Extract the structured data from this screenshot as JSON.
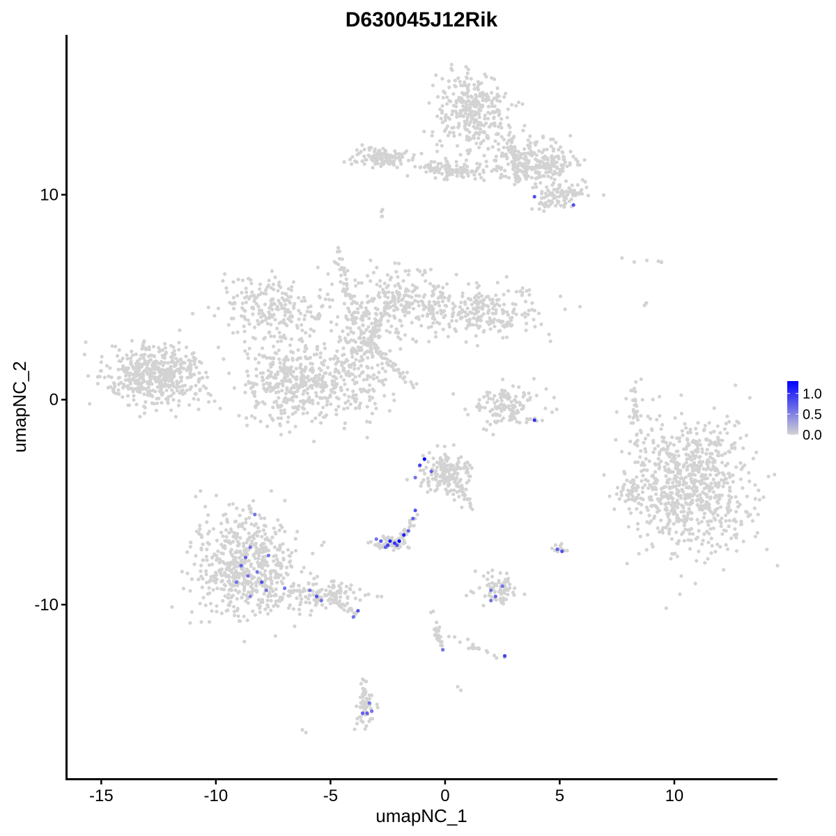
{
  "chart_data": {
    "type": "scatter",
    "title": "D630045J12Rik",
    "xlabel": "umapNC_1",
    "ylabel": "umapNC_2",
    "xlim": [
      -16.5,
      14.5
    ],
    "ylim": [
      -18.5,
      17.8
    ],
    "x_ticks": [
      -15,
      -10,
      -5,
      0,
      5,
      10
    ],
    "y_ticks": [
      -10,
      0,
      10
    ],
    "grid": false,
    "point_color_low": "#d3d3d3",
    "point_color_high": "#0000ff",
    "legend": {
      "position": "right",
      "min": 0.0,
      "max": 1.3,
      "ticks": [
        0.0,
        0.5,
        1.0
      ],
      "labels": [
        "0.0",
        "0.5",
        "1.0"
      ]
    },
    "clusters": [
      {
        "cx": 1.2,
        "cy": 14.0,
        "sx": 0.8,
        "sy": 1.0,
        "n": 320
      },
      {
        "cx": 3.8,
        "cy": 11.6,
        "sx": 0.9,
        "sy": 0.5,
        "n": 260
      },
      {
        "cx": 5.0,
        "cy": 10.0,
        "sx": 0.6,
        "sy": 0.35,
        "n": 90
      },
      {
        "cx": -2.8,
        "cy": 11.8,
        "sx": 0.6,
        "sy": 0.25,
        "n": 110
      },
      {
        "cx": 0.5,
        "cy": 11.2,
        "sx": 0.8,
        "sy": 0.25,
        "n": 70
      },
      {
        "cx": -12.6,
        "cy": 1.2,
        "sx": 1.1,
        "sy": 0.7,
        "n": 480
      },
      {
        "cx": -6.5,
        "cy": 0.8,
        "sx": 1.2,
        "sy": 0.9,
        "n": 420
      },
      {
        "cx": -3.6,
        "cy": 2.5,
        "sx": 0.8,
        "sy": 1.5,
        "n": 260
      },
      {
        "cx": -7.5,
        "cy": 4.5,
        "sx": 1.2,
        "sy": 0.8,
        "n": 220
      },
      {
        "cx": -1.5,
        "cy": 4.8,
        "sx": 1.0,
        "sy": 0.8,
        "n": 180
      },
      {
        "cx": 1.7,
        "cy": 4.3,
        "sx": 1.3,
        "sy": 0.6,
        "n": 230
      },
      {
        "cx": 2.8,
        "cy": -0.3,
        "sx": 0.8,
        "sy": 0.5,
        "n": 130
      },
      {
        "cx": 10.6,
        "cy": -4.2,
        "sx": 1.3,
        "sy": 1.6,
        "n": 780
      },
      {
        "cx": 8.1,
        "cy": -4.5,
        "sx": 0.2,
        "sy": 0.4,
        "n": 30
      },
      {
        "cx": -8.8,
        "cy": -8.2,
        "sx": 1.1,
        "sy": 1.3,
        "n": 560
      },
      {
        "cx": -5.5,
        "cy": -9.6,
        "sx": 1.0,
        "sy": 0.4,
        "n": 140
      },
      {
        "cx": 0.0,
        "cy": -3.6,
        "sx": 0.55,
        "sy": 0.55,
        "n": 170
      },
      {
        "cx": -2.4,
        "cy": -7.0,
        "sx": 0.35,
        "sy": 0.15,
        "n": 55
      },
      {
        "cx": 2.2,
        "cy": -9.2,
        "sx": 0.45,
        "sy": 0.4,
        "n": 70
      },
      {
        "cx": -3.5,
        "cy": -15.0,
        "sx": 0.2,
        "sy": 0.6,
        "n": 40
      },
      {
        "cx": 5.0,
        "cy": -7.3,
        "sx": 0.15,
        "sy": 0.12,
        "n": 12
      },
      {
        "cx": 8.3,
        "cy": -0.5,
        "sx": 0.15,
        "sy": 0.6,
        "n": 30
      }
    ],
    "segments": [
      {
        "x1": -1.2,
        "y1": 11.4,
        "x2": 0.8,
        "y2": 11.0,
        "n": 40
      },
      {
        "x1": 2.8,
        "y1": 13.2,
        "x2": 3.2,
        "y2": 10.6,
        "n": 40
      },
      {
        "x1": -4.0,
        "y1": 3.5,
        "x2": -4.7,
        "y2": 7.5,
        "n": 45
      },
      {
        "x1": -3.6,
        "y1": 3.0,
        "x2": -1.3,
        "y2": 0.6,
        "n": 40
      },
      {
        "x1": -3.2,
        "y1": 3.0,
        "x2": -2.2,
        "y2": 5.2,
        "n": 40
      },
      {
        "x1": -1.2,
        "y1": -5.6,
        "x2": -2.0,
        "y2": -6.9,
        "n": 20
      },
      {
        "x1": 0.4,
        "y1": -3.8,
        "x2": 1.2,
        "y2": -5.3,
        "n": 25
      },
      {
        "x1": -4.3,
        "y1": -10.2,
        "x2": -3.8,
        "y2": -10.6,
        "n": 10
      },
      {
        "x1": -0.6,
        "y1": -10.2,
        "x2": -0.2,
        "y2": -12.0,
        "n": 25
      },
      {
        "x1": 0.2,
        "y1": -11.6,
        "x2": 2.4,
        "y2": -12.6,
        "n": 20
      },
      {
        "x1": -3.2,
        "y1": -15.8,
        "x2": -3.6,
        "y2": -13.5,
        "n": 14
      },
      {
        "x1": 7.0,
        "y1": 7.0,
        "x2": 9.8,
        "y2": 6.6,
        "n": 6
      },
      {
        "x1": 8.7,
        "y1": 4.8,
        "x2": 8.8,
        "y2": 4.5,
        "n": 3
      },
      {
        "x1": -2.8,
        "y1": 9.2,
        "x2": -2.7,
        "y2": 8.8,
        "n": 4
      },
      {
        "x1": -6.0,
        "y1": -16.3,
        "x2": -5.9,
        "y2": -16.1,
        "n": 2
      },
      {
        "x1": 0.5,
        "y1": -14.0,
        "x2": 0.7,
        "y2": -14.1,
        "n": 2
      }
    ],
    "expressed_points": [
      {
        "x": 3.9,
        "y": 9.9,
        "v": 0.8
      },
      {
        "x": 5.6,
        "y": 9.5,
        "v": 0.8
      },
      {
        "x": 3.9,
        "y": -1.0,
        "v": 1.0
      },
      {
        "x": -0.9,
        "y": -2.9,
        "v": 1.3
      },
      {
        "x": -1.1,
        "y": -3.2,
        "v": 0.9
      },
      {
        "x": -0.6,
        "y": -3.5,
        "v": 0.7
      },
      {
        "x": -1.3,
        "y": -3.8,
        "v": 0.6
      },
      {
        "x": -1.3,
        "y": -5.4,
        "v": 0.8
      },
      {
        "x": -1.4,
        "y": -5.8,
        "v": 0.7
      },
      {
        "x": -1.6,
        "y": -6.4,
        "v": 0.7
      },
      {
        "x": -2.0,
        "y": -6.9,
        "v": 1.3
      },
      {
        "x": -2.2,
        "y": -7.0,
        "v": 1.0
      },
      {
        "x": -2.5,
        "y": -7.1,
        "v": 0.9
      },
      {
        "x": -2.8,
        "y": -6.9,
        "v": 0.8
      },
      {
        "x": -2.4,
        "y": -6.9,
        "v": 1.1
      },
      {
        "x": -2.6,
        "y": -7.2,
        "v": 0.7
      },
      {
        "x": -1.8,
        "y": -6.6,
        "v": 1.1
      },
      {
        "x": -2.1,
        "y": -7.1,
        "v": 0.8
      },
      {
        "x": -3.0,
        "y": -6.8,
        "v": 0.6
      },
      {
        "x": -8.3,
        "y": -5.6,
        "v": 0.6
      },
      {
        "x": -8.5,
        "y": -7.2,
        "v": 0.6
      },
      {
        "x": -8.7,
        "y": -7.7,
        "v": 0.7
      },
      {
        "x": -7.7,
        "y": -7.6,
        "v": 0.6
      },
      {
        "x": -8.9,
        "y": -8.1,
        "v": 0.7
      },
      {
        "x": -8.2,
        "y": -8.4,
        "v": 0.6
      },
      {
        "x": -8.0,
        "y": -8.9,
        "v": 0.8
      },
      {
        "x": -8.6,
        "y": -8.6,
        "v": 0.6
      },
      {
        "x": -9.1,
        "y": -8.9,
        "v": 0.6
      },
      {
        "x": -7.8,
        "y": -9.3,
        "v": 0.6
      },
      {
        "x": -8.5,
        "y": -9.6,
        "v": 0.5
      },
      {
        "x": -7.0,
        "y": -9.2,
        "v": 0.6
      },
      {
        "x": -5.9,
        "y": -9.3,
        "v": 0.6
      },
      {
        "x": -5.6,
        "y": -9.6,
        "v": 0.8
      },
      {
        "x": -5.4,
        "y": -9.8,
        "v": 0.6
      },
      {
        "x": -3.8,
        "y": -10.3,
        "v": 0.8
      },
      {
        "x": -4.0,
        "y": -10.6,
        "v": 0.6
      },
      {
        "x": 2.0,
        "y": -9.3,
        "v": 0.6
      },
      {
        "x": 2.2,
        "y": -9.6,
        "v": 0.7
      },
      {
        "x": 2.5,
        "y": -9.1,
        "v": 0.6
      },
      {
        "x": 2.0,
        "y": -9.8,
        "v": 0.6
      },
      {
        "x": 4.9,
        "y": -7.3,
        "v": 0.7
      },
      {
        "x": 5.1,
        "y": -7.4,
        "v": 0.8
      },
      {
        "x": 2.6,
        "y": -12.5,
        "v": 0.9
      },
      {
        "x": -0.1,
        "y": -12.2,
        "v": 0.6
      },
      {
        "x": -3.4,
        "y": -15.3,
        "v": 0.7
      },
      {
        "x": -3.6,
        "y": -15.3,
        "v": 0.7
      },
      {
        "x": -3.2,
        "y": -15.2,
        "v": 0.6
      },
      {
        "x": -3.3,
        "y": -14.8,
        "v": 0.6
      }
    ]
  }
}
